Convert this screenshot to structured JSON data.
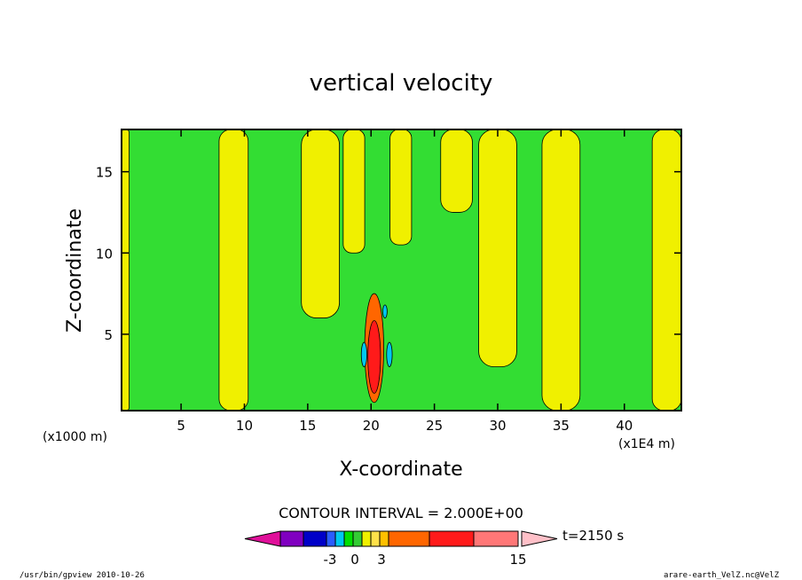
{
  "chart_data": {
    "type": "heatmap",
    "title": "vertical velocity",
    "xlabel": "X-coordinate",
    "ylabel": "Z-coordinate",
    "x_unit_left": "(x1000 m)",
    "x_unit_right": "(x1E4 m)",
    "xlim": [
      0.3,
      44.5
    ],
    "ylim": [
      0.3,
      17.6
    ],
    "x_ticks": [
      5,
      10,
      15,
      20,
      25,
      30,
      35,
      40
    ],
    "y_ticks": [
      5,
      10,
      15
    ],
    "contour_interval_text": "CONTOUR INTERVAL = 2.000E+00",
    "time_label": "t=2150 s",
    "colorbar": {
      "colors": [
        "#e0109a",
        "#8000c0",
        "#0000c8",
        "#2a5cff",
        "#00c8f0",
        "#00e000",
        "#33cc33",
        "#f0f000",
        "#ffe14a",
        "#ffc000",
        "#ff6600",
        "#ff1a1a",
        "#ff7777",
        "#ffc0c8"
      ],
      "tick_labels": [
        "-3",
        "0",
        "3",
        "15"
      ]
    },
    "background_color": "#33dd33",
    "regions": {
      "yellow": [
        {
          "x": [
            8.0,
            10.3
          ],
          "z": [
            0.3,
            17.6
          ]
        },
        {
          "x": [
            14.5,
            17.5
          ],
          "z": [
            6.0,
            17.6
          ]
        },
        {
          "x": [
            17.8,
            19.5
          ],
          "z": [
            10.0,
            17.6
          ]
        },
        {
          "x": [
            21.5,
            23.2
          ],
          "z": [
            10.5,
            17.6
          ]
        },
        {
          "x": [
            25.5,
            28.0
          ],
          "z": [
            12.5,
            17.6
          ]
        },
        {
          "x": [
            28.5,
            31.5
          ],
          "z": [
            3.0,
            17.6
          ]
        },
        {
          "x": [
            33.5,
            36.5
          ],
          "z": [
            0.3,
            17.6
          ]
        },
        {
          "x": [
            42.2,
            44.5
          ],
          "z": [
            0.3,
            17.6
          ]
        },
        {
          "x": [
            0.3,
            0.9
          ],
          "z": [
            0.3,
            17.6
          ]
        }
      ],
      "updraft_core": {
        "x": [
          19.5,
          21.0
        ],
        "z": [
          0.8,
          7.5
        ]
      },
      "downdraft_patches": [
        {
          "x": [
            19.3,
            19.6
          ],
          "z": [
            3.0,
            4.5
          ]
        },
        {
          "x": [
            21.3,
            21.6
          ],
          "z": [
            3.0,
            4.5
          ]
        },
        {
          "x": [
            21.0,
            21.2
          ],
          "z": [
            6.0,
            6.8
          ]
        }
      ]
    }
  },
  "footer": {
    "left": "/usr/bin/gpview  2010-10-26",
    "right": "arare-earth_VelZ.nc@VelZ"
  }
}
